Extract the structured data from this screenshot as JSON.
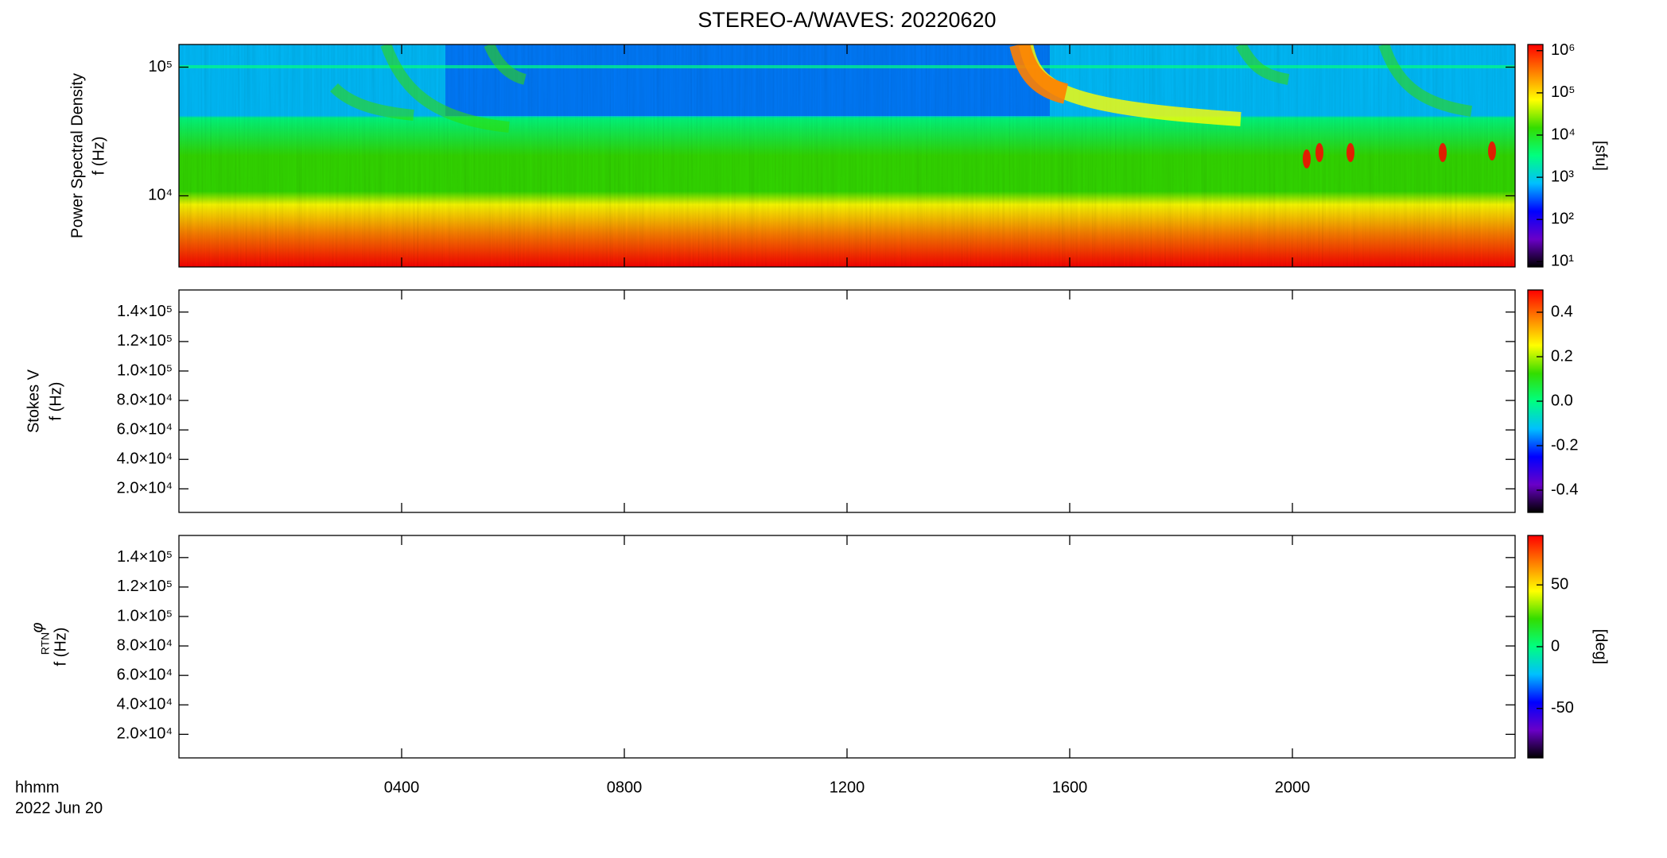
{
  "chart_data": [
    {
      "type": "spectrogram",
      "title": "STEREO-A/WAVES: 20220620",
      "ylabel": "Power Spectral Density",
      "ylabel_unit": "f (Hz)",
      "yscale": "log",
      "ylim": [
        2800,
        150000
      ],
      "yticks": [
        {
          "value": 10000,
          "label": "10⁴"
        },
        {
          "value": 100000,
          "label": "10⁵"
        }
      ],
      "colormap": [
        "#000000",
        "#6a00c8",
        "#0000ff",
        "#00bfff",
        "#00ff80",
        "#33dd00",
        "#ffff00",
        "#ff8000",
        "#ff0000"
      ],
      "colorbar": {
        "label": "[sfu]",
        "scale": "log",
        "lim": [
          7.5,
          1400000
        ],
        "ticks": [
          {
            "value": 10,
            "label": "10¹"
          },
          {
            "value": 100,
            "label": "10²"
          },
          {
            "value": 1000,
            "label": "10³"
          },
          {
            "value": 10000,
            "label": "10⁴"
          },
          {
            "value": 100000,
            "label": "10⁵"
          },
          {
            "value": 1000000,
            "label": "10⁶"
          }
        ]
      }
    },
    {
      "type": "spectrogram",
      "ylabel": "Stokes V",
      "ylabel_unit": "f (Hz)",
      "yscale": "linear",
      "ylim": [
        4000,
        155000
      ],
      "yticks": [
        {
          "value": 20000,
          "label": "2.0×10⁴"
        },
        {
          "value": 40000,
          "label": "4.0×10⁴"
        },
        {
          "value": 60000,
          "label": "6.0×10⁴"
        },
        {
          "value": 80000,
          "label": "8.0×10⁴"
        },
        {
          "value": 100000,
          "label": "1.0×10⁵"
        },
        {
          "value": 120000,
          "label": "1.2×10⁵"
        },
        {
          "value": 140000,
          "label": "1.4×10⁵"
        }
      ],
      "colorbar": {
        "scale": "linear",
        "lim": [
          -0.5,
          0.5
        ],
        "ticks": [
          -0.4,
          -0.2,
          {
            "value": 0,
            "label": "0.0"
          },
          0.2,
          0.4
        ]
      }
    },
    {
      "type": "spectrogram",
      "ylabel_symbol": "φ",
      "ylabel_subscript": "RTN",
      "ylabel_unit": "f (Hz)",
      "yscale": "linear",
      "ylim": [
        4000,
        155000
      ],
      "yticks": [
        {
          "value": 20000,
          "label": "2.0×10⁴"
        },
        {
          "value": 40000,
          "label": "4.0×10⁴"
        },
        {
          "value": 60000,
          "label": "6.0×10⁴"
        },
        {
          "value": 80000,
          "label": "8.0×10⁴"
        },
        {
          "value": 100000,
          "label": "1.0×10⁵"
        },
        {
          "value": 120000,
          "label": "1.2×10⁵"
        },
        {
          "value": 140000,
          "label": "1.4×10⁵"
        }
      ],
      "colorbar": {
        "label": "[deg]",
        "scale": "linear",
        "lim": [
          -90,
          90
        ],
        "ticks": [
          -50,
          0,
          50
        ]
      },
      "xlim": [
        0,
        24
      ],
      "xticks": [
        {
          "value": 4,
          "label": "0400"
        },
        {
          "value": 8,
          "label": "0800"
        },
        {
          "value": 12,
          "label": "1200"
        },
        {
          "value": 16,
          "label": "1600"
        },
        {
          "value": 20,
          "label": "2000"
        }
      ],
      "xlabel": "hhmm",
      "date": "2022 Jun 20"
    }
  ]
}
